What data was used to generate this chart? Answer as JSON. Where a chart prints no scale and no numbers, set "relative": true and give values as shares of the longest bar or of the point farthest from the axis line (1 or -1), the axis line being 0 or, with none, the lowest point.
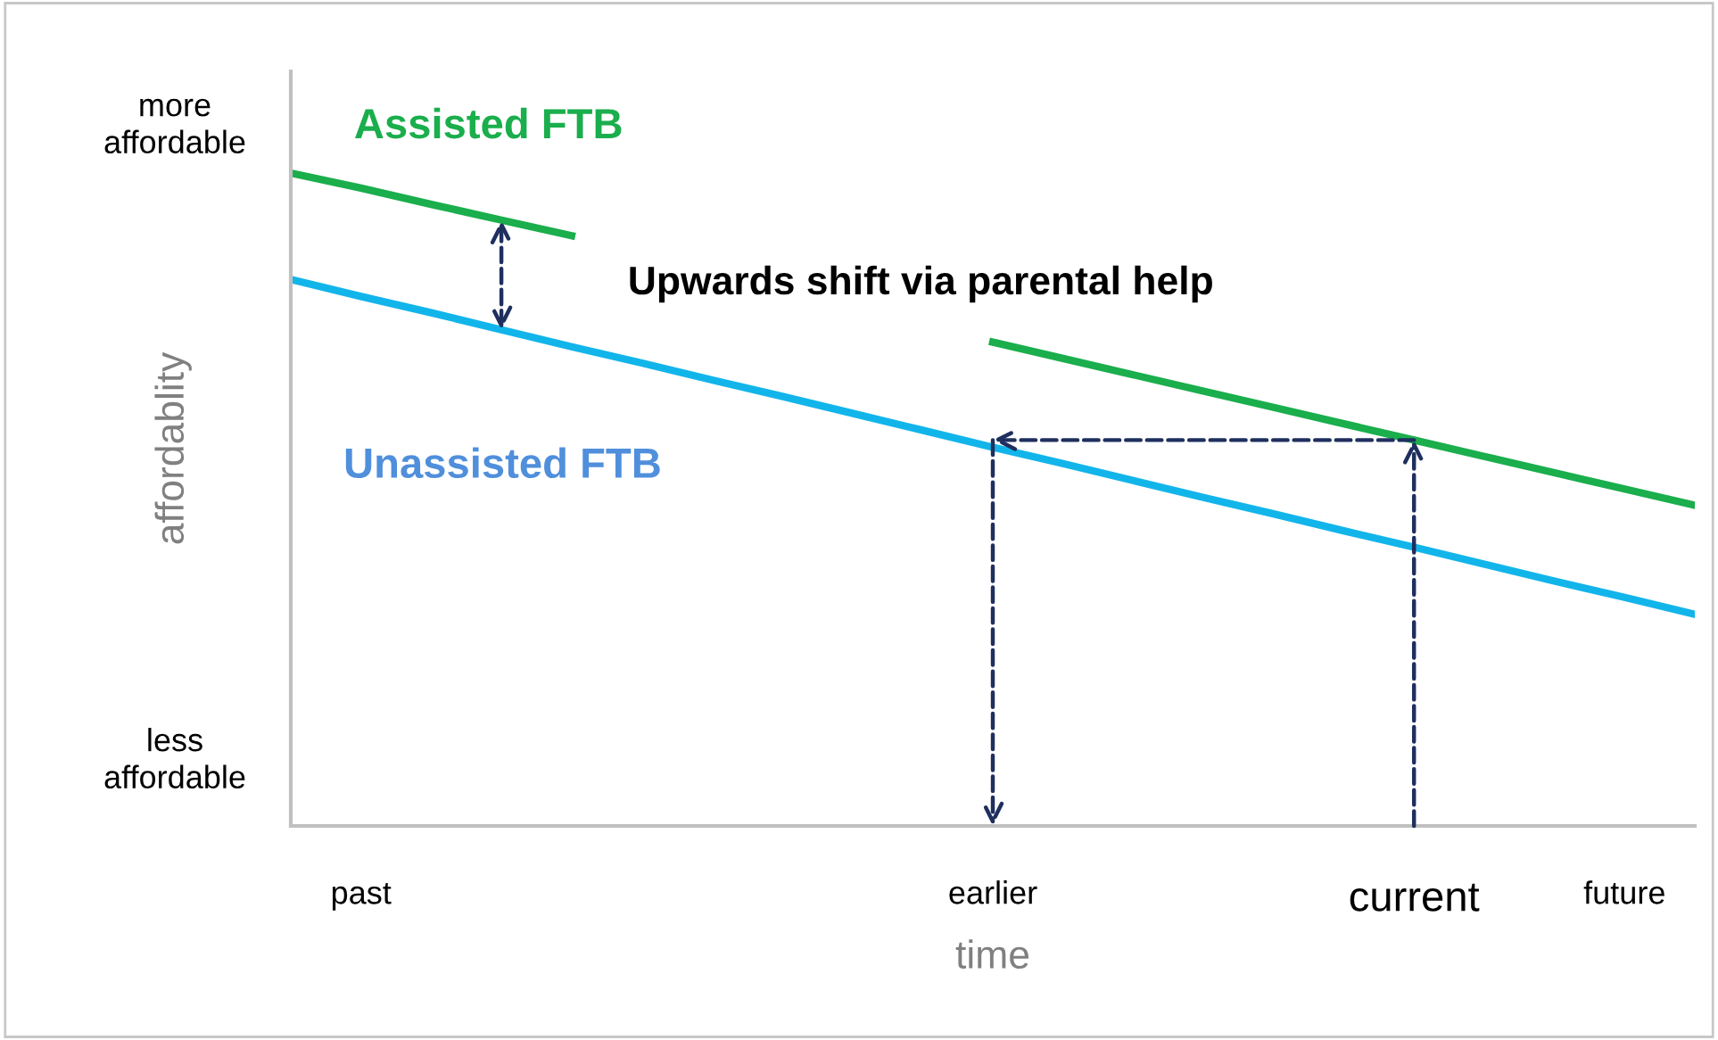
{
  "chart_data": {
    "type": "line",
    "relative": true,
    "xlabel": "time",
    "ylabel": "affordablity",
    "categories": [
      null,
      "past",
      null,
      null,
      null,
      null,
      null,
      null,
      null,
      null,
      "earlier",
      null,
      null,
      null,
      null,
      null,
      "current",
      null,
      null,
      "future",
      null
    ],
    "series": [
      {
        "name": "Assisted FTB",
        "color": "#1aae4c",
        "values": [
          1,
          0.977,
          0.952,
          0.928,
          0.904,
          null,
          null,
          null,
          null,
          null,
          0.741,
          0.716,
          0.691,
          0.666,
          0.641,
          0.616,
          0.591,
          0.566,
          0.541,
          0.516,
          0.491
        ]
      },
      {
        "name": "Unassisted FTB",
        "color": "#12b5ea",
        "values": [
          0.837,
          0.811,
          0.786,
          0.76,
          0.734,
          0.709,
          0.683,
          0.658,
          0.632,
          0.606,
          0.58,
          0.555,
          0.529,
          0.503,
          0.478,
          0.452,
          0.427,
          0.401,
          0.375,
          0.35,
          0.324
        ]
      }
    ],
    "annotations": [
      "Upwards shift via parental help",
      "more\naffordable",
      "less\naffordable"
    ],
    "grid": false,
    "legend": false,
    "marker": "none",
    "line_style": "solid"
  }
}
